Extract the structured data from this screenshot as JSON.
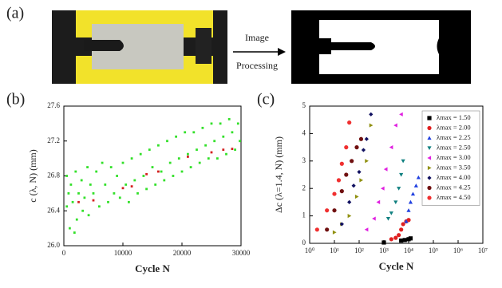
{
  "figure": {
    "panel_labels": [
      "(a)",
      "(b)",
      "(c)"
    ],
    "arrow_text": [
      "Image",
      "Processing"
    ]
  },
  "chart_data": [
    {
      "type": "scatter",
      "xlabel": "Cycle N",
      "ylabel": "c (λ, N) (mm)",
      "xlim": [
        0,
        30000
      ],
      "xticks": [
        0,
        10000,
        20000,
        30000
      ],
      "ylim": [
        26,
        27.6
      ],
      "yticks": [
        {
          "value": 26,
          "label": "26.0"
        },
        26.4,
        26.8,
        27.2,
        27.6
      ],
      "series": [
        {
          "color": "#33e02a",
          "marker": "square",
          "x": [
            500,
            500,
            800,
            1000,
            1200,
            1500,
            1800,
            2000,
            2200,
            2500,
            3000,
            3200,
            3500,
            4000,
            4200,
            4500,
            5000,
            5500,
            6000,
            6500,
            7000,
            7500,
            8000,
            8500,
            9000,
            9500,
            10000,
            10500,
            11000,
            11500,
            12000,
            12500,
            13000,
            13500,
            14000,
            14500,
            15000,
            15500,
            16000,
            16500,
            17000,
            17500,
            18000,
            18500,
            19000,
            19500,
            20000,
            20500,
            21000,
            21500,
            22000,
            22500,
            23000,
            23500,
            24000,
            24500,
            25000,
            25500,
            26000,
            26500,
            27000,
            27500,
            28000,
            28500,
            29000,
            29500,
            29800
          ],
          "values": [
            26.45,
            26.8,
            26.6,
            26.2,
            26.7,
            26.5,
            26.15,
            26.85,
            26.3,
            26.6,
            26.75,
            26.4,
            26.55,
            26.9,
            26.35,
            26.7,
            26.6,
            26.85,
            26.45,
            26.95,
            26.7,
            26.5,
            26.9,
            26.6,
            26.8,
            26.55,
            26.95,
            26.7,
            26.5,
            27.0,
            26.75,
            26.6,
            27.05,
            26.8,
            26.65,
            27.1,
            26.9,
            26.7,
            27.15,
            26.85,
            26.75,
            27.2,
            26.95,
            26.8,
            27.25,
            27.0,
            26.85,
            27.3,
            27.05,
            26.9,
            27.3,
            27.1,
            26.95,
            27.35,
            27.15,
            27.0,
            27.4,
            27.2,
            27.0,
            27.4,
            27.25,
            27.05,
            27.45,
            27.3,
            27.1,
            27.4,
            27.2
          ]
        },
        {
          "color": "#d42020",
          "marker": "square",
          "x": [
            2500,
            5000,
            10000,
            11500,
            14000,
            16000,
            21000,
            25000,
            27000,
            28500
          ],
          "values": [
            26.5,
            26.52,
            26.66,
            26.68,
            26.82,
            26.85,
            27.02,
            27.07,
            27.1,
            27.11
          ]
        }
      ]
    },
    {
      "type": "scatter",
      "xlabel": "Cycle N",
      "ylabel": "Δc (λ=1.4, N) (mm)",
      "xscale": "log",
      "legend": "upper right",
      "xlim": [
        1,
        10000000
      ],
      "xticks": [
        {
          "value": 1,
          "label": "10⁰"
        },
        {
          "value": 10,
          "label": "10¹"
        },
        {
          "value": 100,
          "label": "10²"
        },
        {
          "value": 1000,
          "label": "10³"
        },
        {
          "value": 10000,
          "label": "10⁴"
        },
        {
          "value": 100000,
          "label": "10⁵"
        },
        {
          "value": 1000000,
          "label": "10⁶"
        },
        {
          "value": 10000000,
          "label": "10⁷"
        }
      ],
      "ylim": [
        0,
        5
      ],
      "yticks": [
        0,
        1,
        2,
        3,
        4,
        5
      ],
      "series": [
        {
          "name": "λmax = 1.50",
          "color": "#000000",
          "marker": "square",
          "x": [
            1000,
            5000,
            7000,
            10000,
            12000
          ],
          "values": [
            0.03,
            0.1,
            0.12,
            0.15,
            0.18
          ]
        },
        {
          "name": "λmax = 2.00",
          "color": "#e02020",
          "marker": "circle",
          "x": [
            2000,
            3000,
            4000,
            5000,
            6000,
            8000,
            10000
          ],
          "values": [
            0.15,
            0.2,
            0.3,
            0.5,
            0.7,
            0.8,
            0.85
          ]
        },
        {
          "name": "λmax = 2.25",
          "color": "#2040e0",
          "marker": "tri-up",
          "x": [
            8000,
            10000,
            12000,
            15000,
            20000,
            25000
          ],
          "values": [
            0.8,
            1.2,
            1.5,
            1.8,
            2.1,
            2.4
          ]
        },
        {
          "name": "λmax = 2.50",
          "color": "#108080",
          "marker": "tri-down",
          "x": [
            1500,
            2000,
            3000,
            4000,
            5000,
            6000
          ],
          "values": [
            0.9,
            1.1,
            1.5,
            2.0,
            2.5,
            3.0
          ]
        },
        {
          "name": "λmax = 3.00",
          "color": "#e020e0",
          "marker": "tri-left",
          "x": [
            200,
            400,
            600,
            900,
            1200,
            2000,
            3000,
            5000
          ],
          "values": [
            0.5,
            0.9,
            1.5,
            2.0,
            2.7,
            3.5,
            4.3,
            4.7
          ]
        },
        {
          "name": "λmax = 3.50",
          "color": "#909010",
          "marker": "tri-right",
          "x": [
            10,
            20,
            40,
            80,
            120,
            200,
            300
          ],
          "values": [
            0.4,
            0.7,
            1.0,
            1.7,
            2.3,
            3.0,
            4.3
          ]
        },
        {
          "name": "λmax = 4.00",
          "color": "#101060",
          "marker": "diamond",
          "x": [
            20,
            40,
            60,
            100,
            150,
            200,
            300
          ],
          "values": [
            0.7,
            1.5,
            2.1,
            2.6,
            3.4,
            3.8,
            4.7
          ]
        },
        {
          "name": "λmax = 4.25",
          "color": "#701010",
          "marker": "circle",
          "x": [
            5,
            10,
            20,
            30,
            50,
            80,
            120
          ],
          "values": [
            0.5,
            1.2,
            1.9,
            2.5,
            3.0,
            3.5,
            3.8
          ]
        },
        {
          "name": "λmax = 4.50",
          "color": "#f03030",
          "marker": "circle",
          "x": [
            2,
            5,
            10,
            15,
            20,
            30,
            40
          ],
          "values": [
            0.5,
            1.2,
            1.8,
            2.3,
            2.9,
            3.5,
            4.4
          ]
        }
      ]
    }
  ]
}
